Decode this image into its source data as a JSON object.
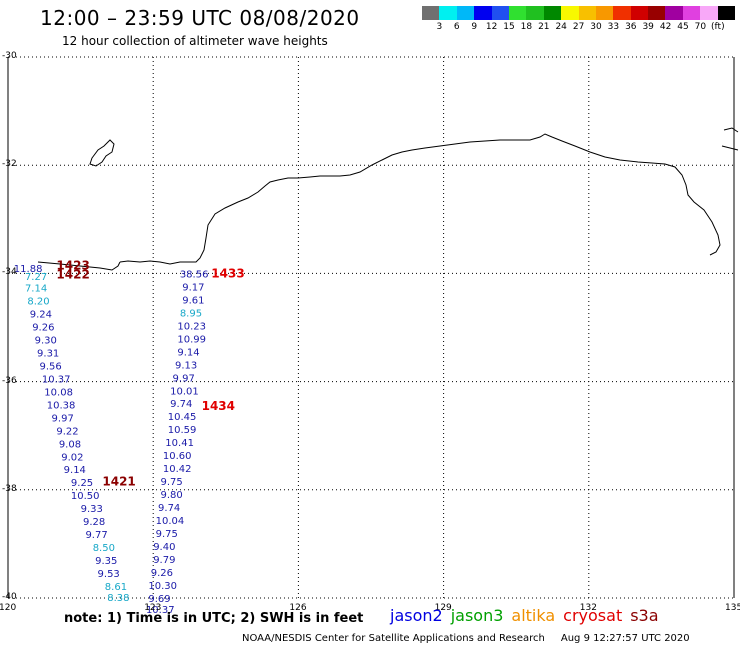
{
  "header": {
    "title": "12:00 – 23:59 UTC 08/08/2020",
    "subtitle": "12 hour collection of altimeter wave heights"
  },
  "colorbar": {
    "colors": [
      "#707070",
      "#00f0f0",
      "#00b8f8",
      "#0000f0",
      "#2050f0",
      "#30e030",
      "#20c020",
      "#008800",
      "#f8f800",
      "#f8c000",
      "#f89800",
      "#f03000",
      "#d00000",
      "#980000",
      "#a000a0",
      "#e040e0",
      "#f8a8f8",
      "#000000"
    ],
    "labels": [
      "3",
      "6",
      "9",
      "12",
      "15",
      "18",
      "21",
      "24",
      "27",
      "30",
      "33",
      "36",
      "39",
      "42",
      "45",
      "70",
      "(ft)"
    ]
  },
  "axes": {
    "lat_labels": [
      "-30",
      "-32",
      "-34",
      "-36",
      "-38",
      "-40"
    ],
    "lon_labels": [
      "120",
      "123",
      "126",
      "129",
      "132",
      "135"
    ],
    "lon_range": [
      120,
      135
    ],
    "lat_range": [
      -30,
      -40
    ]
  },
  "passes": [
    {
      "time": "1423",
      "color": "#8b0000",
      "lon": 121.0,
      "lat": -33.85
    },
    {
      "time": "1422",
      "color": "#8b0000",
      "lon": 121.0,
      "lat": -34.02
    },
    {
      "time": "1433",
      "color": "#e00000",
      "lon": 124.2,
      "lat": -34.0
    },
    {
      "time": "1434",
      "color": "#e00000",
      "lon": 124.0,
      "lat": -36.45
    },
    {
      "time": "1421",
      "color": "#8b0000",
      "lon": 121.95,
      "lat": -37.85
    }
  ],
  "track_west": [
    {
      "v": "11.88",
      "c": "#1a1aa8",
      "lon": 120.12,
      "lat": -33.9
    },
    {
      "v": "7.27",
      "c": "#18a8c8",
      "lon": 120.35,
      "lat": -34.05
    },
    {
      "v": "7.14",
      "c": "#18a8c8",
      "lon": 120.35,
      "lat": -34.26
    },
    {
      "v": "8.20",
      "c": "#18a8c8",
      "lon": 120.4,
      "lat": -34.5
    },
    {
      "v": "9.24",
      "c": "#1a1aa8",
      "lon": 120.45,
      "lat": -34.74
    },
    {
      "v": "9.26",
      "c": "#1a1aa8",
      "lon": 120.5,
      "lat": -34.98
    },
    {
      "v": "9.30",
      "c": "#1a1aa8",
      "lon": 120.55,
      "lat": -35.22
    },
    {
      "v": "9.31",
      "c": "#1a1aa8",
      "lon": 120.6,
      "lat": -35.46
    },
    {
      "v": "9.56",
      "c": "#1a1aa8",
      "lon": 120.65,
      "lat": -35.7
    },
    {
      "v": "10.37",
      "c": "#1a1aa8",
      "lon": 120.7,
      "lat": -35.94
    },
    {
      "v": "10.08",
      "c": "#1a1aa8",
      "lon": 120.75,
      "lat": -36.18
    },
    {
      "v": "10.38",
      "c": "#1a1aa8",
      "lon": 120.8,
      "lat": -36.42
    },
    {
      "v": "9.97",
      "c": "#1a1aa8",
      "lon": 120.9,
      "lat": -36.66
    },
    {
      "v": "9.22",
      "c": "#1a1aa8",
      "lon": 121.0,
      "lat": -36.9
    },
    {
      "v": "9.08",
      "c": "#1a1aa8",
      "lon": 121.05,
      "lat": -37.14
    },
    {
      "v": "9.02",
      "c": "#1a1aa8",
      "lon": 121.1,
      "lat": -37.38
    },
    {
      "v": "9.14",
      "c": "#1a1aa8",
      "lon": 121.15,
      "lat": -37.62
    },
    {
      "v": "9.25",
      "c": "#1a1aa8",
      "lon": 121.3,
      "lat": -37.86
    },
    {
      "v": "10.50",
      "c": "#1a1aa8",
      "lon": 121.3,
      "lat": -38.1
    },
    {
      "v": "9.33",
      "c": "#1a1aa8",
      "lon": 121.5,
      "lat": -38.34
    },
    {
      "v": "9.28",
      "c": "#1a1aa8",
      "lon": 121.55,
      "lat": -38.58
    },
    {
      "v": "9.77",
      "c": "#1a1aa8",
      "lon": 121.6,
      "lat": -38.82
    },
    {
      "v": "8.50",
      "c": "#18a8c8",
      "lon": 121.75,
      "lat": -39.06
    },
    {
      "v": "9.35",
      "c": "#1a1aa8",
      "lon": 121.8,
      "lat": -39.3
    },
    {
      "v": "9.53",
      "c": "#1a1aa8",
      "lon": 121.85,
      "lat": -39.54
    },
    {
      "v": "8.61",
      "c": "#18a8c8",
      "lon": 122.0,
      "lat": -39.78
    },
    {
      "v": "8.38",
      "c": "#18a8c8",
      "lon": 122.05,
      "lat": -39.98
    }
  ],
  "track_east": [
    {
      "v": "38.56",
      "c": "#1a1aa8",
      "lon": 123.55,
      "lat": -34.0
    },
    {
      "v": "9.17",
      "c": "#1a1aa8",
      "lon": 123.6,
      "lat": -34.24
    },
    {
      "v": "9.61",
      "c": "#1a1aa8",
      "lon": 123.6,
      "lat": -34.48
    },
    {
      "v": "8.95",
      "c": "#18a8c8",
      "lon": 123.55,
      "lat": -34.72
    },
    {
      "v": "10.23",
      "c": "#1a1aa8",
      "lon": 123.5,
      "lat": -34.96
    },
    {
      "v": "10.99",
      "c": "#1a1aa8",
      "lon": 123.5,
      "lat": -35.2
    },
    {
      "v": "9.14",
      "c": "#1a1aa8",
      "lon": 123.5,
      "lat": -35.44
    },
    {
      "v": "9.13",
      "c": "#1a1aa8",
      "lon": 123.45,
      "lat": -35.68
    },
    {
      "v": "9.97",
      "c": "#1a1aa8",
      "lon": 123.4,
      "lat": -35.92
    },
    {
      "v": "10.01",
      "c": "#1a1aa8",
      "lon": 123.35,
      "lat": -36.16
    },
    {
      "v": "9.74",
      "c": "#1a1aa8",
      "lon": 123.35,
      "lat": -36.4
    },
    {
      "v": "10.45",
      "c": "#1a1aa8",
      "lon": 123.3,
      "lat": -36.64
    },
    {
      "v": "10.59",
      "c": "#1a1aa8",
      "lon": 123.3,
      "lat": -36.88
    },
    {
      "v": "10.41",
      "c": "#1a1aa8",
      "lon": 123.25,
      "lat": -37.12
    },
    {
      "v": "10.60",
      "c": "#1a1aa8",
      "lon": 123.2,
      "lat": -37.36
    },
    {
      "v": "10.42",
      "c": "#1a1aa8",
      "lon": 123.2,
      "lat": -37.6
    },
    {
      "v": "9.75",
      "c": "#1a1aa8",
      "lon": 123.15,
      "lat": -37.84
    },
    {
      "v": "9.80",
      "c": "#1a1aa8",
      "lon": 123.15,
      "lat": -38.08
    },
    {
      "v": "9.74",
      "c": "#1a1aa8",
      "lon": 123.1,
      "lat": -38.32
    },
    {
      "v": "10.04",
      "c": "#1a1aa8",
      "lon": 123.05,
      "lat": -38.56
    },
    {
      "v": "9.75",
      "c": "#1a1aa8",
      "lon": 123.05,
      "lat": -38.8
    },
    {
      "v": "9.40",
      "c": "#1a1aa8",
      "lon": 123.0,
      "lat": -39.04
    },
    {
      "v": "9.79",
      "c": "#1a1aa8",
      "lon": 123.0,
      "lat": -39.28
    },
    {
      "v": "9.26",
      "c": "#1a1aa8",
      "lon": 122.95,
      "lat": -39.52
    },
    {
      "v": "10.30",
      "c": "#1a1aa8",
      "lon": 122.9,
      "lat": -39.76
    },
    {
      "v": "9.69",
      "c": "#1a1aa8",
      "lon": 122.9,
      "lat": -40.0
    },
    {
      "v": "10.37",
      "c": "#1a1aa8",
      "lon": 122.85,
      "lat": -40.2
    }
  ],
  "footer": {
    "note": "note: 1) Time is in UTC; 2) SWH is in feet",
    "legend": [
      {
        "name": "jason2",
        "color": "#0000e0"
      },
      {
        "name": "jason3",
        "color": "#00a000"
      },
      {
        "name": "altika",
        "color": "#f09000"
      },
      {
        "name": "cryosat",
        "color": "#e00000"
      },
      {
        "name": "s3a",
        "color": "#8b0000"
      }
    ],
    "credit": "NOAA/NESDIS Center for Satellite Applications and Research",
    "timestamp": "Aug  9 12:27:57 UTC 2020"
  }
}
